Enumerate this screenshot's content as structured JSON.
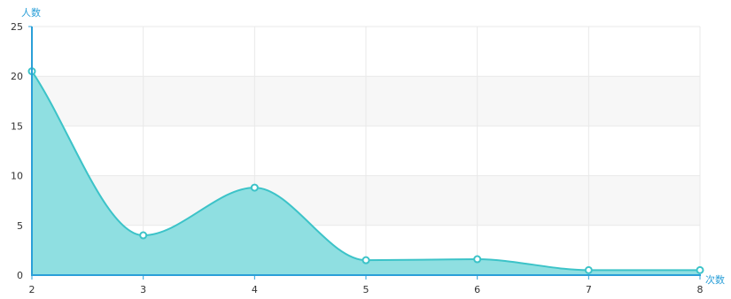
{
  "chart_data": {
    "type": "area",
    "title": "",
    "xlabel": "次数",
    "ylabel": "人数",
    "x": [
      2,
      3,
      4,
      5,
      6,
      7,
      8
    ],
    "values": [
      20.5,
      4,
      8.8,
      1.5,
      1.6,
      0.5,
      0.5
    ],
    "xlim": [
      2,
      8
    ],
    "ylim": [
      0,
      25
    ],
    "yticks": [
      0,
      5,
      10,
      15,
      20,
      25
    ],
    "xticks": [
      2,
      3,
      4,
      5,
      6,
      7,
      8
    ],
    "grid": true,
    "smooth": true,
    "colors": {
      "line": "#3cc3c8",
      "fill": "#8fdfe1",
      "axis": "#2a9fd8",
      "band": "#f7f7f7",
      "grid": "#e9e9e9",
      "marker_fill": "#ffffff"
    }
  }
}
